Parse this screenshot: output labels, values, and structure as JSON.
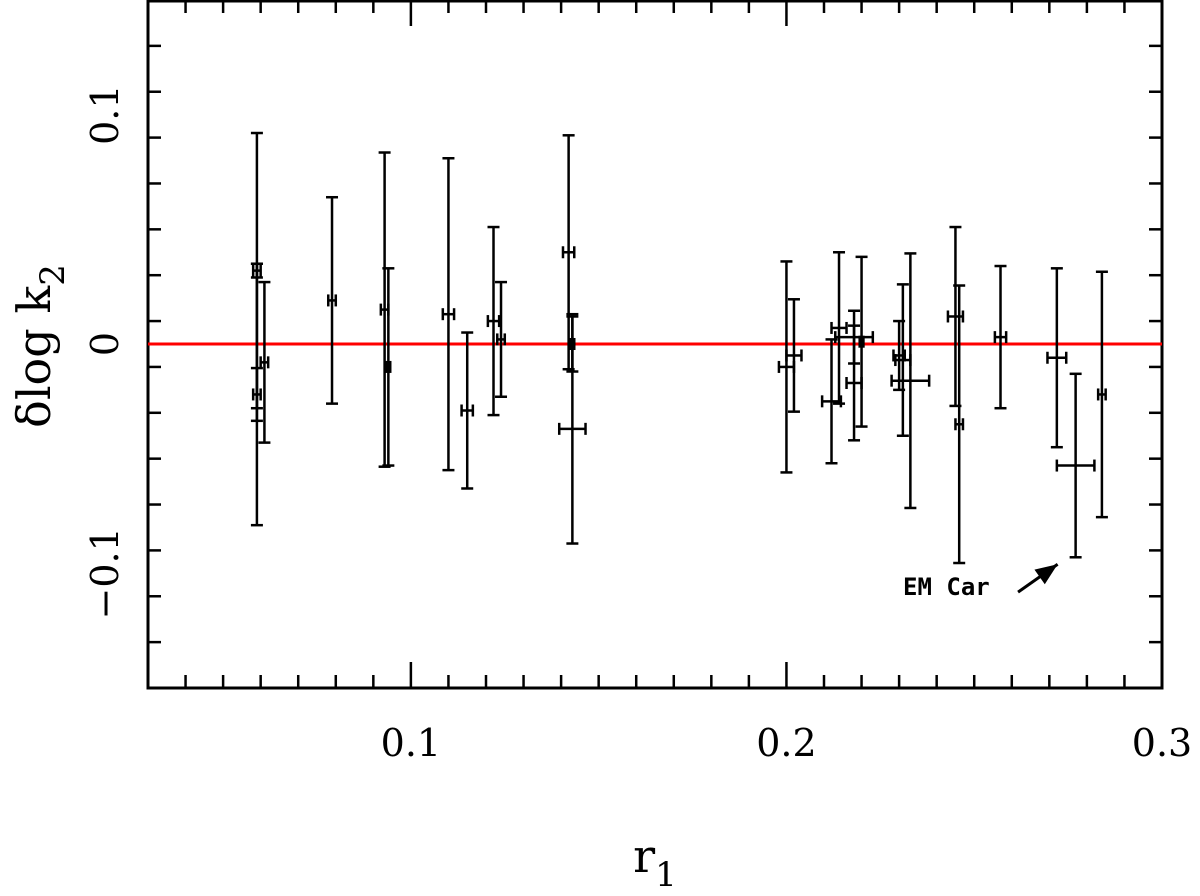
{
  "chart_data": {
    "type": "scatter",
    "title": "",
    "xlabel": "r",
    "xlabel_sub": "1",
    "ylabel": "δlog k",
    "ylabel_sub": "2",
    "xlim": [
      0.03,
      0.3
    ],
    "ylim": [
      -0.15,
      0.15
    ],
    "x_ticks": [
      {
        "value": 0.1,
        "label": "0.1"
      },
      {
        "value": 0.2,
        "label": "0.2"
      },
      {
        "value": 0.3,
        "label": "0.3"
      }
    ],
    "y_ticks": [
      {
        "value": -0.1,
        "label": "−0.1"
      },
      {
        "value": 0,
        "label": "0"
      },
      {
        "value": 0.1,
        "label": "0.1"
      }
    ],
    "x_minor_step": 0.01,
    "y_minor_step": 0.02,
    "reference_line": {
      "y": 0,
      "color": "#ff0000"
    },
    "grid": false,
    "legend": "none",
    "points": [
      {
        "x": 0.059,
        "y": 0.032,
        "x_err": 0.001,
        "y_err": 0.003
      },
      {
        "x": 0.059,
        "y": -0.022,
        "x_err": 0.001,
        "y_err": 0.0115
      },
      {
        "x": 0.061,
        "y": -0.008,
        "x_err": 0.001,
        "y_err": 0.035
      },
      {
        "x": 0.059,
        "y": -0.022,
        "x_err": 0.0,
        "y_err": 0.057,
        "bar_only": true
      },
      {
        "x": 0.059,
        "y": 0.032,
        "x_err": 0.0,
        "y_err": 0.06,
        "bar_only": true
      },
      {
        "x": 0.079,
        "y": 0.019,
        "x_err": 0.001,
        "y_err": 0.045
      },
      {
        "x": 0.093,
        "y": 0.015,
        "x_err": 0.001,
        "y_err": 0.0685
      },
      {
        "x": 0.094,
        "y": -0.01,
        "x_err": 0.0005,
        "y_err": 0.043
      },
      {
        "x": 0.11,
        "y": 0.013,
        "x_err": 0.0015,
        "y_err": 0.068
      },
      {
        "x": 0.115,
        "y": -0.029,
        "x_err": 0.0015,
        "y_err": 0.034
      },
      {
        "x": 0.122,
        "y": 0.01,
        "x_err": 0.0015,
        "y_err": 0.041
      },
      {
        "x": 0.124,
        "y": 0.002,
        "x_err": 0.001,
        "y_err": 0.025
      },
      {
        "x": 0.142,
        "y": 0.04,
        "x_err": 0.0015,
        "y_err": 0.051
      },
      {
        "x": 0.143,
        "y": 0.0,
        "x_err": 0.0005,
        "y_err": 0.012
      },
      {
        "x": 0.143,
        "y": -0.037,
        "x_err": 0.0035,
        "y_err": 0.05
      },
      {
        "x": 0.2,
        "y": -0.01,
        "x_err": 0.002,
        "y_err": 0.046
      },
      {
        "x": 0.202,
        "y": -0.005,
        "x_err": 0.002,
        "y_err": 0.0245
      },
      {
        "x": 0.212,
        "y": -0.025,
        "x_err": 0.0025,
        "y_err": 0.027
      },
      {
        "x": 0.214,
        "y": 0.007,
        "x_err": 0.002,
        "y_err": 0.033
      },
      {
        "x": 0.218,
        "y": 0.003,
        "x_err": 0.005,
        "y_err": 0.0115
      },
      {
        "x": 0.218,
        "y": -0.017,
        "x_err": 0.002,
        "y_err": 0.025
      },
      {
        "x": 0.22,
        "y": 0.001,
        "x_err": 0.0005,
        "y_err": 0.037
      },
      {
        "x": 0.23,
        "y": -0.005,
        "x_err": 0.0015,
        "y_err": 0.015
      },
      {
        "x": 0.231,
        "y": -0.007,
        "x_err": 0.002,
        "y_err": 0.033
      },
      {
        "x": 0.233,
        "y": -0.016,
        "x_err": 0.005,
        "y_err": 0.0555
      },
      {
        "x": 0.245,
        "y": 0.012,
        "x_err": 0.002,
        "y_err": 0.039
      },
      {
        "x": 0.246,
        "y": -0.035,
        "x_err": 0.001,
        "y_err": 0.0605
      },
      {
        "x": 0.257,
        "y": 0.003,
        "x_err": 0.0015,
        "y_err": 0.031
      },
      {
        "x": 0.272,
        "y": -0.006,
        "x_err": 0.0025,
        "y_err": 0.039
      },
      {
        "x": 0.277,
        "y": -0.053,
        "x_err": 0.005,
        "y_err": 0.04
      },
      {
        "x": 0.284,
        "y": -0.022,
        "x_err": 0.001,
        "y_err": 0.0535
      }
    ],
    "annotation": {
      "text": "EM Car",
      "points_to": {
        "x": 0.277,
        "y": -0.093
      },
      "label_at": {
        "x": 0.263,
        "y": -0.106
      }
    }
  }
}
